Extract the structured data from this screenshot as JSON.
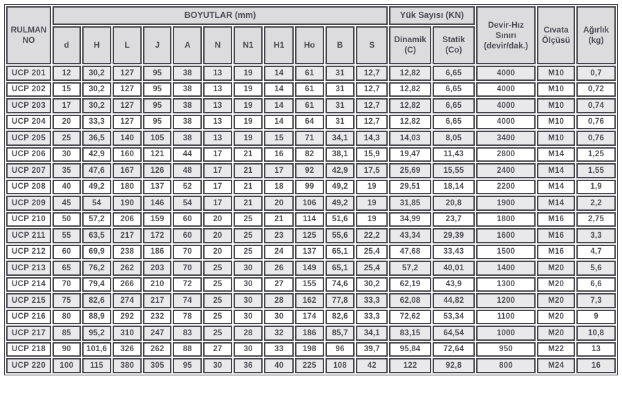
{
  "colors": {
    "border": "#45454d",
    "header_bg": "#dcdcdf",
    "row_shade": "#e9e9ec",
    "row_white": "#ffffff",
    "text": "#4b4b53"
  },
  "table": {
    "headers": {
      "rulman_no": "RULMAN\nNO",
      "boyutlar": "BOYUTLAR (mm)",
      "dim_cols": [
        "d",
        "H",
        "L",
        "J",
        "A",
        "N",
        "N1",
        "H1",
        "Ho",
        "B",
        "S"
      ],
      "yuk_sayisi": "Yük Sayısı (KN)",
      "dinamik": "Dinamik\n(C)",
      "statik": "Statik\n(Co)",
      "devir_hiz": "Devir-Hız\nSınırı\n(devir/dak.)",
      "civata": "Cıvata\nÖlçüsü",
      "agirlik": "Ağırlık\n(kg)"
    },
    "rows": [
      {
        "no": "UCP 201",
        "values": [
          "12",
          "30,2",
          "127",
          "95",
          "38",
          "13",
          "19",
          "14",
          "61",
          "31",
          "12,7",
          "12,82",
          "6,65",
          "4000",
          "M10",
          "0,7"
        ]
      },
      {
        "no": "UCP 202",
        "values": [
          "15",
          "30,2",
          "127",
          "95",
          "38",
          "13",
          "19",
          "14",
          "61",
          "31",
          "12,7",
          "12,82",
          "6,65",
          "4000",
          "M10",
          "0,72"
        ]
      },
      {
        "no": "UCP 203",
        "values": [
          "17",
          "30,2",
          "127",
          "95",
          "38",
          "13",
          "19",
          "14",
          "61",
          "31",
          "12,7",
          "12,82",
          "6,65",
          "4000",
          "M10",
          "0,74"
        ]
      },
      {
        "no": "UCP 204",
        "values": [
          "20",
          "33,3",
          "127",
          "95",
          "38",
          "13",
          "19",
          "14",
          "64",
          "31",
          "12,7",
          "12,82",
          "6,65",
          "4000",
          "M10",
          "0,76"
        ]
      },
      {
        "no": "UCP 205",
        "values": [
          "25",
          "36,5",
          "140",
          "105",
          "38",
          "13",
          "19",
          "15",
          "71",
          "34,1",
          "14,3",
          "14,03",
          "8,05",
          "3400",
          "M10",
          "0,76"
        ]
      },
      {
        "no": "UCP 206",
        "values": [
          "30",
          "42,9",
          "160",
          "121",
          "44",
          "17",
          "21",
          "16",
          "82",
          "38,1",
          "15,9",
          "19,47",
          "11,43",
          "2800",
          "M14",
          "1,25"
        ]
      },
      {
        "no": "UCP 207",
        "values": [
          "35",
          "47,6",
          "167",
          "126",
          "48",
          "17",
          "21",
          "17",
          "92",
          "42,9",
          "17,5",
          "25,69",
          "15,55",
          "2400",
          "M14",
          "1,55"
        ]
      },
      {
        "no": "UCP 208",
        "values": [
          "40",
          "49,2",
          "180",
          "137",
          "52",
          "17",
          "21",
          "18",
          "99",
          "49,2",
          "19",
          "29,51",
          "18,14",
          "2200",
          "M14",
          "1,9"
        ]
      },
      {
        "no": "UCP 209",
        "values": [
          "45",
          "54",
          "190",
          "146",
          "54",
          "17",
          "21",
          "20",
          "106",
          "49,2",
          "19",
          "31,85",
          "20,8",
          "1900",
          "M14",
          "2,2"
        ]
      },
      {
        "no": "UCP 210",
        "values": [
          "50",
          "57,2",
          "206",
          "159",
          "60",
          "20",
          "25",
          "21",
          "114",
          "51,6",
          "19",
          "34,99",
          "23,7",
          "1800",
          "M16",
          "2,75"
        ]
      },
      {
        "no": "UCP 211",
        "values": [
          "55",
          "63,5",
          "217",
          "172",
          "60",
          "20",
          "25",
          "23",
          "125",
          "55,6",
          "22,2",
          "43,34",
          "29,39",
          "1600",
          "M16",
          "3,3"
        ]
      },
      {
        "no": "UCP 212",
        "values": [
          "60",
          "69,9",
          "238",
          "186",
          "70",
          "20",
          "25",
          "24",
          "137",
          "65,1",
          "25,4",
          "47,68",
          "33,43",
          "1500",
          "M16",
          "4,7"
        ]
      },
      {
        "no": "UCP 213",
        "values": [
          "65",
          "76,2",
          "262",
          "203",
          "70",
          "25",
          "30",
          "26",
          "149",
          "65,1",
          "25,4",
          "57,2",
          "40,01",
          "1400",
          "M20",
          "5,6"
        ]
      },
      {
        "no": "UCP 214",
        "values": [
          "70",
          "79,4",
          "266",
          "210",
          "72",
          "25",
          "30",
          "27",
          "155",
          "74,6",
          "30,2",
          "62,19",
          "43,9",
          "1300",
          "M20",
          "6,6"
        ]
      },
      {
        "no": "UCP 215",
        "values": [
          "75",
          "82,6",
          "274",
          "217",
          "74",
          "25",
          "30",
          "28",
          "162",
          "77,8",
          "33,3",
          "62,08",
          "44,82",
          "1200",
          "M20",
          "7,3"
        ]
      },
      {
        "no": "UCP 216",
        "values": [
          "80",
          "88,9",
          "292",
          "232",
          "78",
          "25",
          "30",
          "30",
          "174",
          "82,6",
          "33,3",
          "72,62",
          "53,34",
          "1100",
          "M20",
          "9"
        ]
      },
      {
        "no": "UCP 217",
        "values": [
          "85",
          "95,2",
          "310",
          "247",
          "83",
          "25",
          "28",
          "32",
          "186",
          "85,7",
          "34,1",
          "83,15",
          "64,54",
          "1000",
          "M20",
          "10,8"
        ]
      },
      {
        "no": "UCP 218",
        "values": [
          "90",
          "101,6",
          "326",
          "262",
          "88",
          "27",
          "30",
          "33",
          "198",
          "96",
          "39,7",
          "95,84",
          "72,64",
          "950",
          "M22",
          "13"
        ]
      },
      {
        "no": "UCP 220",
        "values": [
          "100",
          "115",
          "380",
          "305",
          "95",
          "30",
          "36",
          "40",
          "225",
          "108",
          "42",
          "122",
          "92,8",
          "800",
          "M24",
          "16"
        ]
      }
    ]
  }
}
